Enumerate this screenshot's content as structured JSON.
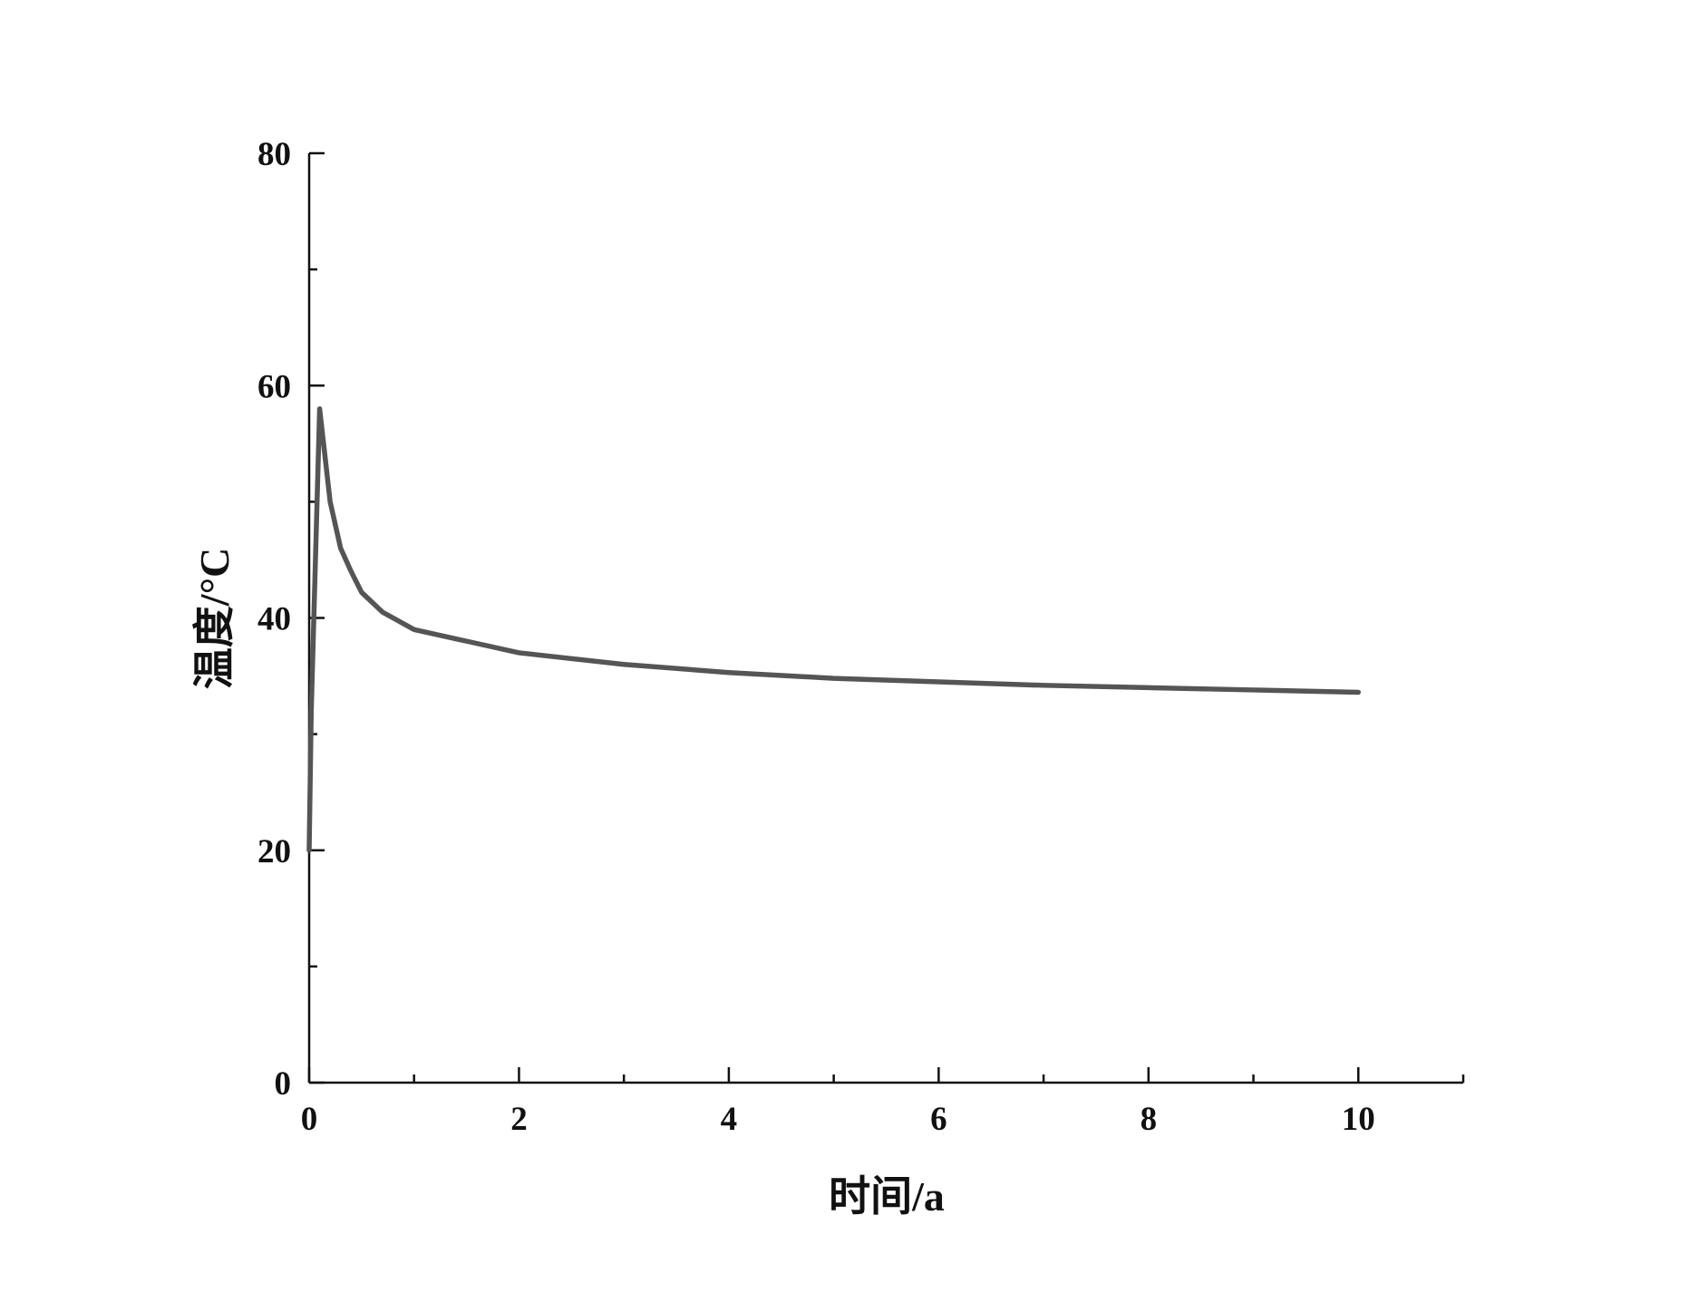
{
  "chart_data": {
    "type": "line",
    "x_label": "时间/a",
    "y_label": "温度/°C",
    "x": [
      0,
      0.02,
      0.1,
      0.2,
      0.3,
      0.4,
      0.5,
      0.7,
      1,
      1.5,
      2,
      3,
      4,
      5,
      6,
      7,
      8,
      9,
      10
    ],
    "series": [
      {
        "color": "#555555",
        "values": [
          20,
          32,
          58,
          50,
          46,
          44,
          42.2,
          40.5,
          39,
          38,
          37,
          36,
          35.3,
          34.8,
          34.5,
          34.2,
          34,
          33.8,
          33.6
        ]
      }
    ],
    "xlim": [
      0,
      11
    ],
    "ylim": [
      0,
      80
    ],
    "xticks": [
      0,
      2,
      4,
      6,
      8,
      10
    ],
    "yticks": [
      0,
      20,
      40,
      60,
      80
    ],
    "xminorticks": [
      1,
      3,
      5,
      7,
      9,
      11
    ],
    "yminorticks": [
      10,
      30,
      50,
      70
    ],
    "grid": false
  }
}
